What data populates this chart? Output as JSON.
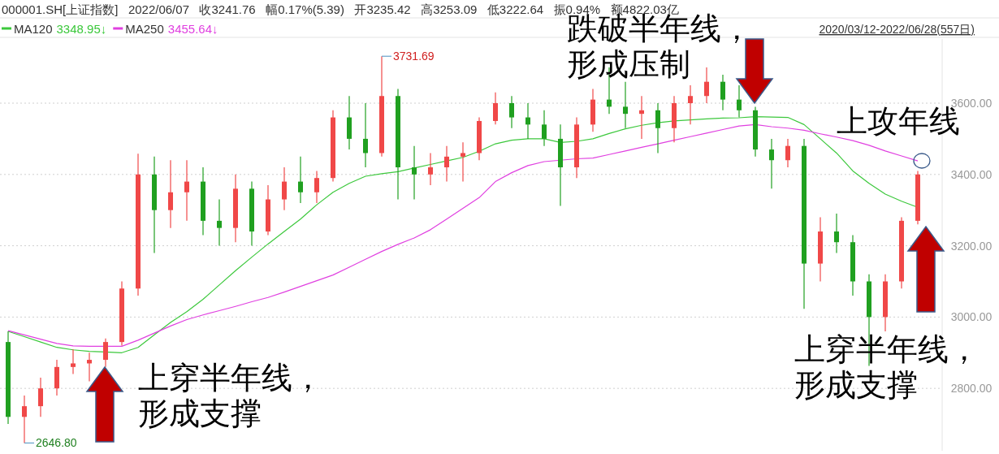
{
  "chart_data": {
    "type": "candlestick",
    "categories": [
      null,
      null,
      null,
      null,
      null,
      null,
      null,
      null,
      null,
      null,
      null,
      null,
      null,
      null,
      null,
      null,
      null,
      null,
      null,
      null,
      null,
      null,
      null,
      null,
      null,
      null,
      null,
      null,
      null,
      null,
      null,
      null,
      null,
      null,
      null,
      null,
      null,
      null,
      null,
      null,
      null,
      null,
      null,
      null,
      null,
      null,
      null,
      null,
      null,
      null,
      null,
      null,
      null,
      null,
      null,
      null,
      null
    ],
    "series": [
      {
        "ohlc": [
          [
            2930,
            2960,
            2700,
            2720
          ],
          [
            2720,
            2780,
            2646.8,
            2750
          ],
          [
            2750,
            2830,
            2720,
            2800
          ],
          [
            2800,
            2880,
            2780,
            2860
          ],
          [
            2860,
            2910,
            2840,
            2870
          ],
          [
            2870,
            2900,
            2820,
            2880
          ],
          [
            2880,
            2940,
            2860,
            2930
          ],
          [
            2930,
            3100,
            2920,
            3080
          ],
          [
            3080,
            3458,
            3060,
            3400
          ],
          [
            3400,
            3450,
            3180,
            3300
          ],
          [
            3300,
            3440,
            3250,
            3350
          ],
          [
            3350,
            3440,
            3270,
            3380
          ],
          [
            3380,
            3420,
            3230,
            3270
          ],
          [
            3270,
            3330,
            3200,
            3250
          ],
          [
            3250,
            3400,
            3210,
            3360
          ],
          [
            3360,
            3380,
            3200,
            3240
          ],
          [
            3240,
            3370,
            3230,
            3330
          ],
          [
            3330,
            3420,
            3300,
            3380
          ],
          [
            3380,
            3450,
            3320,
            3350
          ],
          [
            3350,
            3410,
            3320,
            3390
          ],
          [
            3390,
            3580,
            3380,
            3560
          ],
          [
            3560,
            3620,
            3470,
            3500
          ],
          [
            3500,
            3600,
            3420,
            3460
          ],
          [
            3460,
            3731.69,
            3450,
            3620
          ],
          [
            3620,
            3640,
            3330,
            3420
          ],
          [
            3420,
            3480,
            3330,
            3400
          ],
          [
            3400,
            3460,
            3370,
            3420
          ],
          [
            3420,
            3480,
            3380,
            3450
          ],
          [
            3450,
            3490,
            3380,
            3460
          ],
          [
            3460,
            3560,
            3440,
            3550
          ],
          [
            3550,
            3630,
            3540,
            3600
          ],
          [
            3600,
            3620,
            3530,
            3560
          ],
          [
            3560,
            3600,
            3500,
            3540
          ],
          [
            3540,
            3580,
            3480,
            3500
          ],
          [
            3500,
            3540,
            3312,
            3420
          ],
          [
            3420,
            3560,
            3390,
            3540
          ],
          [
            3540,
            3640,
            3520,
            3610
          ],
          [
            3610,
            3700,
            3570,
            3590
          ],
          [
            3590,
            3660,
            3530,
            3570
          ],
          [
            3570,
            3620,
            3500,
            3580
          ],
          [
            3580,
            3600,
            3460,
            3530
          ],
          [
            3530,
            3620,
            3490,
            3600
          ],
          [
            3600,
            3650,
            3540,
            3620
          ],
          [
            3620,
            3700,
            3600,
            3660
          ],
          [
            3660,
            3680,
            3580,
            3610
          ],
          [
            3610,
            3650,
            3560,
            3580
          ],
          [
            3580,
            3590,
            3450,
            3470
          ],
          [
            3470,
            3500,
            3360,
            3440
          ],
          [
            3440,
            3500,
            3420,
            3480
          ],
          [
            3480,
            3500,
            3023,
            3150
          ],
          [
            3150,
            3280,
            3100,
            3240
          ],
          [
            3240,
            3290,
            3180,
            3210
          ],
          [
            3210,
            3230,
            3060,
            3100
          ],
          [
            3100,
            3120,
            2863,
            3000
          ],
          [
            3000,
            3120,
            2960,
            3100
          ],
          [
            3100,
            3280,
            3080,
            3270
          ],
          [
            3270,
            3410,
            3260,
            3400
          ]
        ],
        "colors": [
          "#20a020",
          "#f04848",
          "#f04848",
          "#f04848",
          "#f04848",
          "#f04848",
          "#f04848",
          "#f04848",
          "#f04848",
          "#20a020",
          "#f04848",
          "#f04848",
          "#20a020",
          "#20a020",
          "#f04848",
          "#20a020",
          "#f04848",
          "#f04848",
          "#20a020",
          "#f04848",
          "#f04848",
          "#20a020",
          "#20a020",
          "#f04848",
          "#20a020",
          "#20a020",
          "#f04848",
          "#f04848",
          "#f04848",
          "#f04848",
          "#f04848",
          "#20a020",
          "#20a020",
          "#20a020",
          "#20a020",
          "#f04848",
          "#f04848",
          "#20a020",
          "#20a020",
          "#f04848",
          "#20a020",
          "#f04848",
          "#f04848",
          "#f04848",
          "#20a020",
          "#20a020",
          "#20a020",
          "#20a020",
          "#f04848",
          "#20a020",
          "#f04848",
          "#20a020",
          "#20a020",
          "#20a020",
          "#f04848",
          "#f04848",
          "#f04848"
        ]
      },
      {
        "type": "line",
        "name": "MA120",
        "color": "#3cc83c",
        "values": [
          2960,
          2945,
          2930,
          2915,
          2908,
          2904,
          2902,
          2900,
          2915,
          2950,
          2985,
          3015,
          3050,
          3090,
          3130,
          3168,
          3205,
          3240,
          3275,
          3315,
          3350,
          3375,
          3395,
          3402,
          3408,
          3418,
          3428,
          3438,
          3448,
          3465,
          3486,
          3496,
          3500,
          3500,
          3490,
          3493,
          3500,
          3515,
          3528,
          3538,
          3545,
          3550,
          3553,
          3556,
          3558,
          3559,
          3562,
          3561,
          3560,
          3540,
          3500,
          3460,
          3410,
          3375,
          3345,
          3325,
          3308
        ]
      },
      {
        "type": "line",
        "name": "MA250",
        "color": "#e040e0",
        "values": [
          2962,
          2950,
          2938,
          2926,
          2919,
          2918,
          2918,
          2918,
          2935,
          2955,
          2975,
          2993,
          3006,
          3018,
          3030,
          3043,
          3055,
          3070,
          3086,
          3102,
          3118,
          3140,
          3162,
          3184,
          3204,
          3222,
          3245,
          3275,
          3305,
          3335,
          3380,
          3405,
          3425,
          3436,
          3440,
          3444,
          3446,
          3456,
          3466,
          3476,
          3486,
          3496,
          3506,
          3516,
          3526,
          3536,
          3540,
          3534,
          3530,
          3524,
          3514,
          3505,
          3495,
          3482,
          3466,
          3452,
          3438
        ]
      }
    ],
    "ylim": [
      2625,
      3780
    ],
    "yticks": [
      {
        "value": 2800,
        "label": "2800.00"
      },
      {
        "value": 3000,
        "label": "3000.00"
      },
      {
        "value": 3200,
        "label": "3200.00"
      },
      {
        "value": 3400,
        "label": "3400.00"
      },
      {
        "value": 3600,
        "label": "3600.00"
      }
    ],
    "grid": "y",
    "legend": "top left",
    "annotations": [
      "000001.SH[上证指数]   2022/06/07   收3241.76   幅0.17%(5.39)   开3235.42   高3253.09   低3222.64   振0.94%   额4822.03亿",
      "3348.95↓",
      "3455.64↓",
      "2020/03/12-2022/06/28(557日)",
      "3731.69",
      "2646.80",
      "上穿半年线，",
      "形成支撑",
      "跌破半年线，",
      "形成压制",
      "上攻年线",
      "上穿半年线，",
      "形成支撑"
    ]
  }
}
